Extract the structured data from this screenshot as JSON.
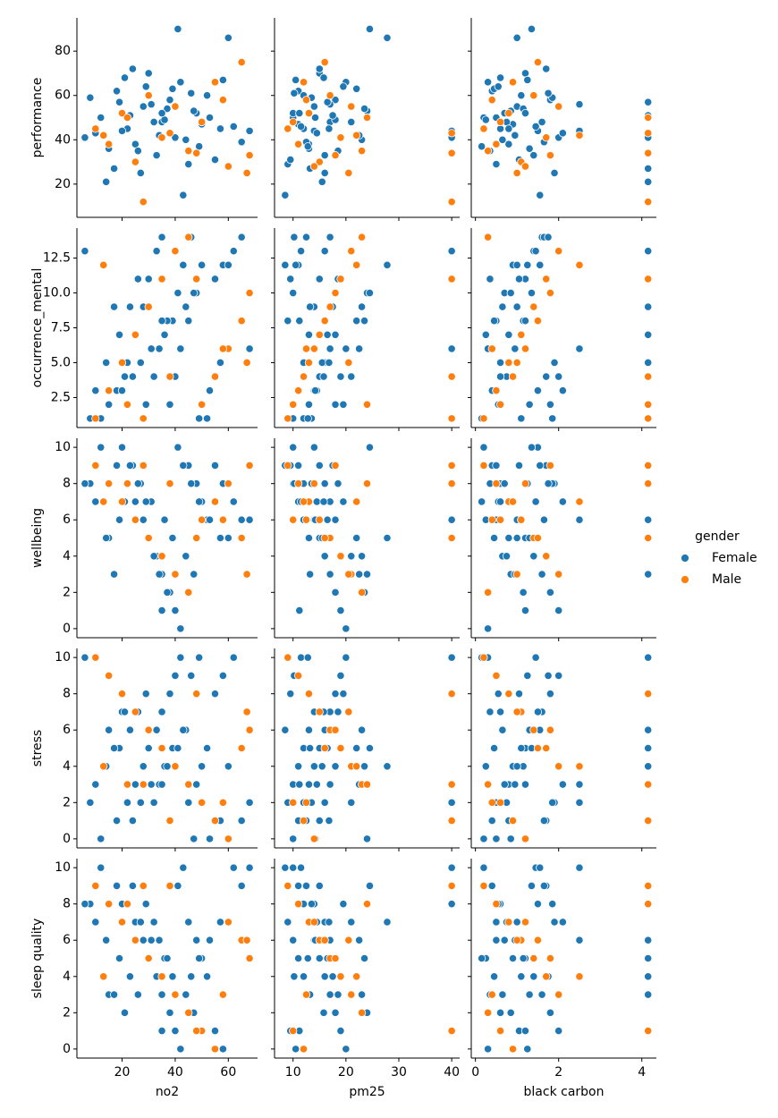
{
  "chart_data": {
    "type": "pairplot",
    "x_vars": [
      {
        "label": "no2",
        "xlim": [
          3,
          71
        ],
        "xticks": [
          20,
          40,
          60
        ]
      },
      {
        "label": "pm25",
        "xlim": [
          6.5,
          41.5
        ],
        "xticks": [
          10,
          20,
          30,
          40
        ]
      },
      {
        "label": "black carbon",
        "xlim": [
          -0.1,
          4.35
        ],
        "xticks": [
          0,
          2,
          4
        ]
      }
    ],
    "y_vars": [
      {
        "label": "performance",
        "ylim": [
          5,
          95
        ],
        "yticks": [
          20,
          40,
          60,
          80
        ]
      },
      {
        "label": "occurrence_mental",
        "ylim": [
          0.35,
          14.65
        ],
        "yticks": [
          2.5,
          {
            "value": 5,
            "label": "5.0"
          },
          7.5,
          {
            "value": 10,
            "label": "10.0"
          },
          12.5
        ]
      },
      {
        "label": "wellbeing",
        "ylim": [
          -0.5,
          10.5
        ],
        "yticks": [
          0,
          2,
          4,
          6,
          8,
          10
        ]
      },
      {
        "label": "stress",
        "ylim": [
          -0.5,
          10.5
        ],
        "yticks": [
          0,
          2,
          4,
          6,
          8,
          10
        ]
      },
      {
        "label": "sleep quality",
        "ylim": [
          -0.5,
          10.5
        ],
        "yticks": [
          0,
          2,
          4,
          6,
          8,
          10
        ]
      }
    ],
    "legend_title": "gender",
    "legend_position": "right",
    "series": [
      {
        "name": "Female",
        "color": "#1f77b4",
        "x": [
          [
            12,
            18,
            22,
            25,
            28,
            30,
            33,
            35,
            38,
            40,
            42,
            45,
            48,
            50,
            52,
            15,
            20,
            24,
            27,
            31,
            36,
            39,
            44,
            47,
            55,
            58,
            62,
            65,
            8,
            10,
            14,
            19,
            23,
            26,
            29,
            32,
            34,
            37,
            41,
            43,
            46,
            49,
            53,
            57,
            60,
            68,
            6,
            17,
            21,
            35
          ],
          [
            10,
            11,
            12,
            13,
            14,
            15,
            16,
            17,
            18,
            19,
            20,
            9,
            10,
            11,
            12,
            13,
            14,
            15,
            16,
            17,
            18,
            22,
            23,
            24,
            9.5,
            10.5,
            11.5,
            12.5,
            13.5,
            14.5,
            15.5,
            16.5,
            17.5,
            18.5,
            19.5,
            21,
            22.5,
            23.5,
            24.5,
            8.5,
            10.2,
            12.8,
            14.2,
            16.8,
            27.8,
            40,
            40,
            13.2,
            15.8,
            11.2
          ],
          [
            0.2,
            0.4,
            0.6,
            0.8,
            1.0,
            1.2,
            1.4,
            1.6,
            1.8,
            2.0,
            0.3,
            0.5,
            0.7,
            0.9,
            1.1,
            1.3,
            1.5,
            1.7,
            1.9,
            2.5,
            0.25,
            0.45,
            0.65,
            0.85,
            1.05,
            1.25,
            1.45,
            1.65,
            1.85,
            2.1,
            4.15,
            4.15,
            4.15,
            0.35,
            0.55,
            0.75,
            0.95,
            1.15,
            1.35,
            1.55,
            1.75,
            0.15,
            0.5,
            0.8,
            1.0,
            2.5,
            4.15,
            4.15,
            0.6,
            1.2
          ]
        ],
        "y": [
          [
            50,
            62,
            45,
            38,
            55,
            70,
            33,
            48,
            58,
            41,
            66,
            29,
            52,
            47,
            60,
            36,
            44,
            72,
            25,
            56,
            49,
            63,
            40,
            53,
            31,
            67,
            46,
            39,
            59,
            43,
            21,
            57,
            51,
            35,
            64,
            48,
            42,
            54,
            90,
            15,
            61,
            37,
            50,
            45,
            86,
            44,
            41,
            27,
            68,
            52
          ],
          [
            1,
            3,
            5,
            7,
            9,
            11,
            13,
            14,
            2,
            4,
            6,
            8,
            10,
            12,
            1,
            2,
            3,
            4,
            5,
            6,
            7,
            8,
            9,
            10,
            11,
            12,
            13,
            14,
            1,
            3,
            5,
            7,
            9,
            11,
            2,
            4,
            6,
            8,
            10,
            12,
            14,
            1,
            3,
            5,
            12,
            6,
            13,
            9,
            4,
            8
          ],
          [
            10,
            9,
            8,
            7,
            6,
            5,
            4,
            3,
            2,
            1,
            0,
            9,
            8,
            7,
            6,
            5,
            10,
            9,
            8,
            7,
            6,
            5,
            4,
            3,
            9,
            8,
            7,
            6,
            8,
            7,
            5,
            6,
            9,
            8,
            7,
            4,
            3,
            2,
            10,
            9,
            8,
            7,
            6,
            5,
            5,
            6,
            8,
            3,
            7,
            1
          ],
          [
            0,
            1,
            2,
            3,
            4,
            5,
            6,
            7,
            8,
            9,
            10,
            2,
            3,
            4,
            5,
            6,
            7,
            1,
            2,
            3,
            4,
            5,
            6,
            0,
            8,
            9,
            10,
            1,
            2,
            3,
            4,
            5,
            6,
            7,
            8,
            2,
            3,
            4,
            5,
            6,
            9,
            10,
            0,
            1,
            4,
            2,
            10,
            5,
            7,
            3
          ],
          [
            10,
            9,
            8,
            7,
            6,
            5,
            4,
            3,
            2,
            1,
            0,
            7,
            6,
            5,
            4,
            3,
            8,
            9,
            7,
            6,
            5,
            4,
            3,
            2,
            1,
            0,
            10,
            9,
            8,
            7,
            6,
            5,
            4,
            3,
            8,
            7,
            6,
            5,
            9,
            10,
            4,
            5,
            6,
            7,
            7,
            10,
            8,
            3,
            2,
            1
          ]
        ]
      },
      {
        "name": "Male",
        "color": "#ff7f0e",
        "x": [
          [
            10,
            15,
            20,
            25,
            30,
            35,
            40,
            45,
            50,
            55,
            60,
            65,
            68,
            13,
            22,
            28,
            38,
            48,
            58,
            67
          ],
          [
            9,
            11,
            13,
            15,
            17,
            19,
            21,
            23,
            10,
            12,
            14,
            16,
            18,
            22,
            24,
            40,
            40,
            40,
            12.5,
            20.5
          ],
          [
            0.2,
            0.5,
            0.8,
            1.1,
            1.4,
            1.7,
            2.0,
            0.3,
            0.6,
            0.9,
            1.2,
            1.5,
            1.8,
            2.5,
            4.15,
            4.15,
            4.15,
            4.15,
            0.4,
            1.0
          ]
        ],
        "y": [
          [
            45,
            38,
            52,
            30,
            60,
            41,
            55,
            35,
            48,
            66,
            28,
            75,
            33,
            42,
            50,
            12,
            43,
            34,
            58,
            25
          ],
          [
            1,
            3,
            5,
            7,
            9,
            11,
            13,
            14,
            2,
            4,
            6,
            8,
            10,
            12,
            2,
            1,
            4,
            11,
            6,
            5
          ],
          [
            9,
            8,
            7,
            6,
            5,
            4,
            3,
            2,
            6,
            7,
            8,
            5,
            9,
            7,
            8,
            9,
            8,
            5,
            6,
            3
          ],
          [
            10,
            9,
            8,
            7,
            6,
            5,
            4,
            3,
            2,
            1,
            0,
            5,
            6,
            4,
            3,
            3,
            1,
            8,
            2,
            7
          ],
          [
            9,
            8,
            7,
            6,
            5,
            4,
            3,
            2,
            1,
            0,
            7,
            6,
            5,
            4,
            8,
            9,
            9,
            1,
            3,
            6
          ]
        ]
      }
    ]
  }
}
